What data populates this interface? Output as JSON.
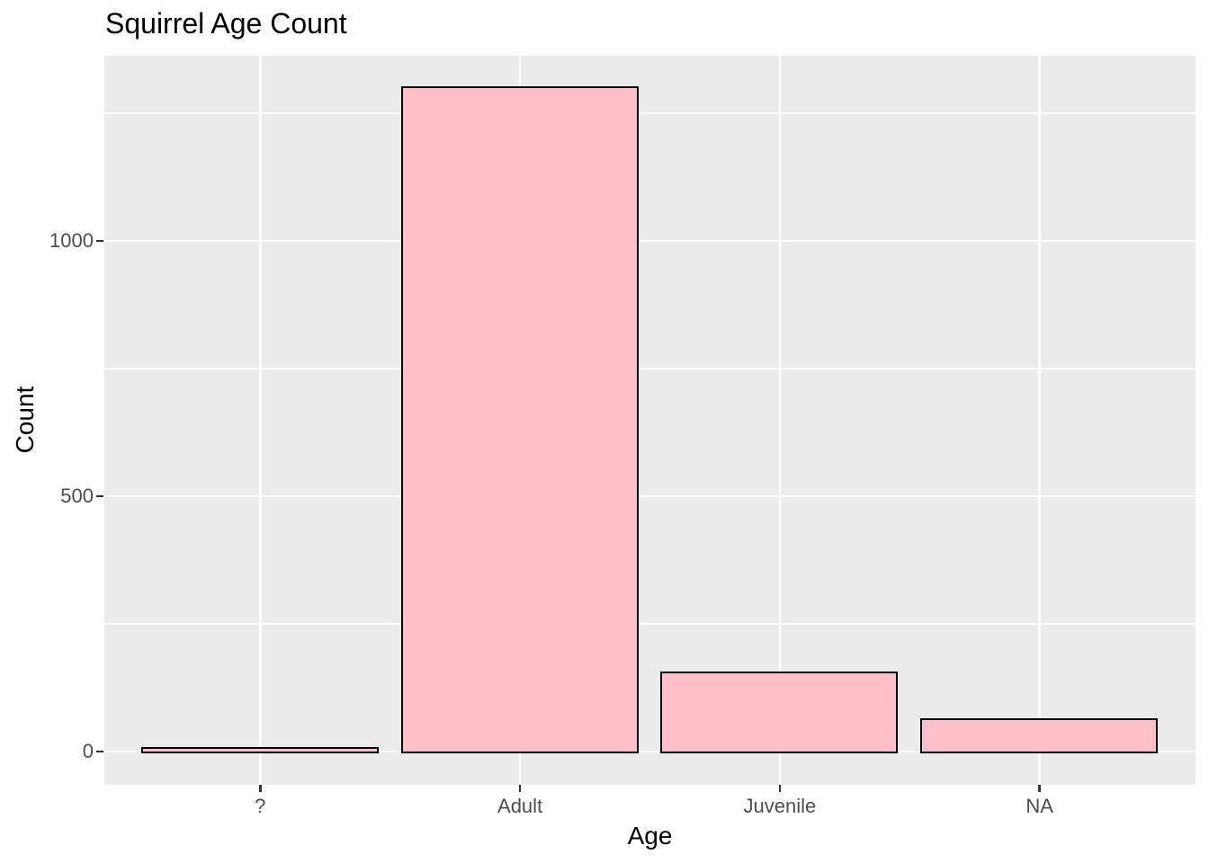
{
  "chart_data": {
    "type": "bar",
    "title": "Squirrel Age Count",
    "xlabel": "Age",
    "ylabel": "Count",
    "categories": [
      "?",
      "Adult",
      "Juvenile",
      "NA"
    ],
    "values": [
      4,
      1298,
      153,
      61
    ],
    "y_major_ticks": [
      0,
      500,
      1000
    ],
    "y_minor_ticks": [
      250,
      750,
      1250
    ],
    "ylim": [
      -65,
      1363
    ],
    "grid": true,
    "legend": "none",
    "theme": "ggplot-gray",
    "colors": {
      "bar_fill": "#FFC0CB",
      "bar_stroke": "#000000",
      "panel_background": "#EBEBEB",
      "gridline": "#FFFFFF",
      "tick_mark": "#333333",
      "tick_label": "#4D4D4D",
      "title_text": "#000000",
      "axis_title_text": "#000000",
      "page_background": "#FFFFFF"
    }
  }
}
